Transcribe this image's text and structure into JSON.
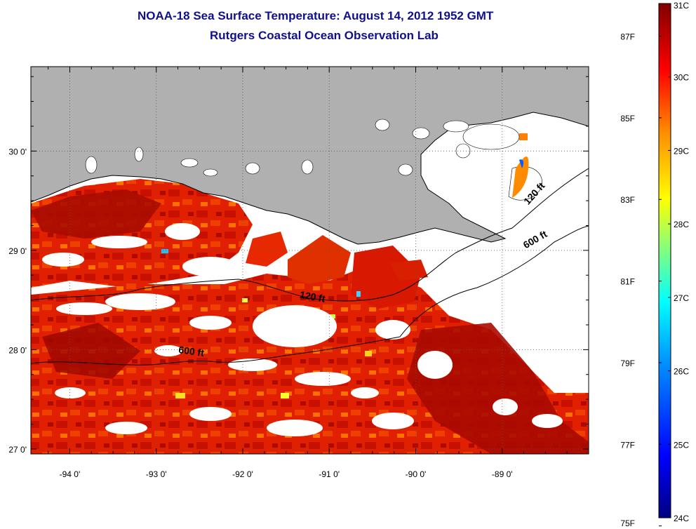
{
  "header": {
    "title": "NOAA-18 Sea Surface Temperature:  August 14, 2012 1952 GMT",
    "subtitle": "Rutgers Coastal Ocean Observation Lab"
  },
  "map": {
    "lon_labels": [
      "-94 0'",
      "-93 0'",
      "-92 0'",
      "-91 0'",
      "-90 0'",
      "-89 0'"
    ],
    "lat_labels": [
      "30 0'",
      "29 0'",
      "28 0'",
      "27 0'"
    ],
    "lon_range": [
      -94.45,
      -88.0
    ],
    "lat_range": [
      26.95,
      30.85
    ],
    "isobath_labels": [
      {
        "text": "120 ft",
        "lon": -91.2,
        "lat": 28.5
      },
      {
        "text": "600 ft",
        "lon": -92.6,
        "lat": 27.95
      },
      {
        "text": "120 ft",
        "lon": -88.6,
        "lat": 29.55
      },
      {
        "text": "600 ft",
        "lon": -88.6,
        "lat": 29.08
      }
    ],
    "land_color": "#b0b0b0",
    "nodata_color": "#ffffff"
  },
  "colorbar": {
    "celsius_labels": [
      "31C",
      "30C",
      "29C",
      "28C",
      "27C",
      "26C",
      "25C",
      "24C"
    ],
    "fahrenheit_labels": [
      "87F",
      "85F",
      "83F",
      "81F",
      "79F",
      "77F",
      "75F"
    ],
    "c_range": [
      24,
      31
    ],
    "colors": [
      "#000080",
      "#0000ff",
      "#0080ff",
      "#00ffff",
      "#80ff80",
      "#ffff00",
      "#ff8000",
      "#ff0000",
      "#800000"
    ]
  }
}
